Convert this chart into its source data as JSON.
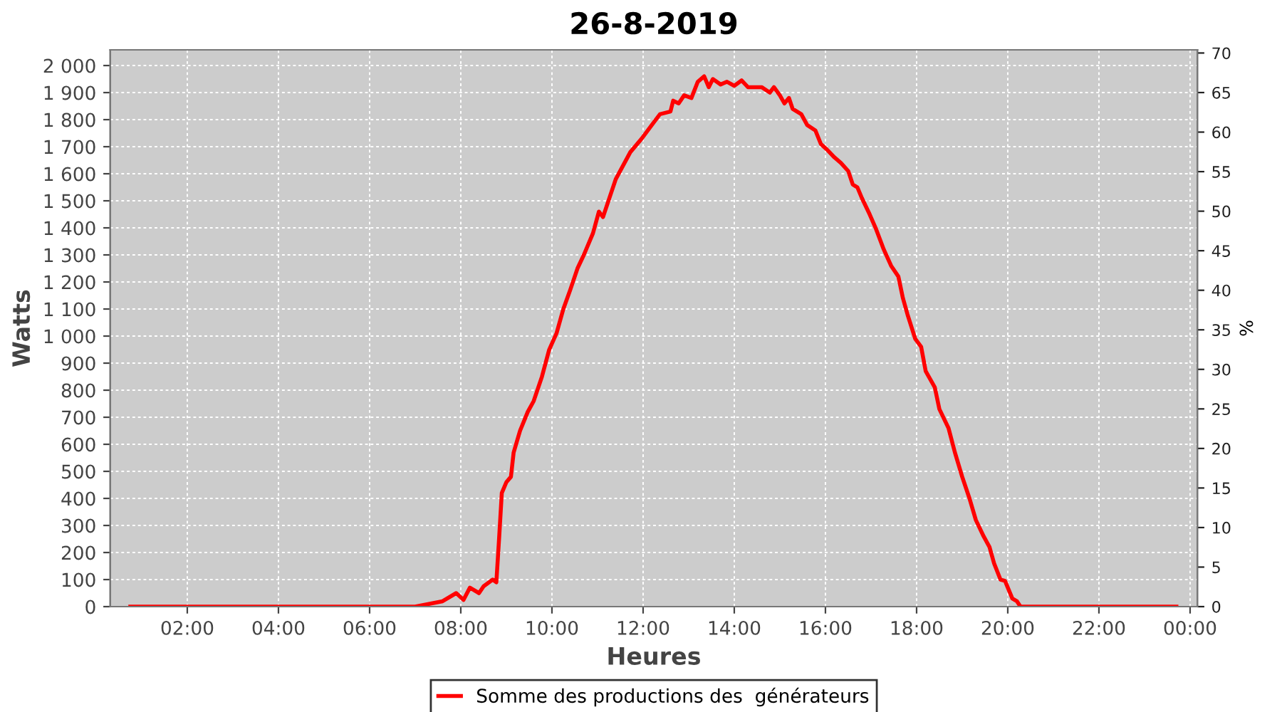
{
  "chart_data": {
    "type": "line",
    "title": "26-8-2019",
    "xlabel": "Heures",
    "ylabel": "Watts",
    "y2label": "%",
    "series": [
      {
        "name": "Somme des productions des  générateurs",
        "color": "#ff0000",
        "x": [
          0.75,
          7.0,
          7.6,
          7.9,
          8.06,
          8.2,
          8.4,
          8.5,
          8.7,
          8.78,
          8.84,
          8.9,
          9.0,
          9.1,
          9.16,
          9.3,
          9.47,
          9.6,
          9.78,
          9.94,
          10.1,
          10.25,
          10.4,
          10.56,
          10.7,
          10.9,
          11.03,
          11.12,
          11.28,
          11.4,
          11.56,
          11.72,
          11.97,
          12.19,
          12.37,
          12.6,
          12.66,
          12.78,
          12.9,
          13.06,
          13.2,
          13.34,
          13.44,
          13.53,
          13.7,
          13.84,
          14.0,
          14.16,
          14.3,
          14.6,
          14.78,
          14.87,
          15.0,
          15.1,
          15.2,
          15.28,
          15.47,
          15.6,
          15.78,
          15.9,
          16.03,
          16.2,
          16.34,
          16.5,
          16.6,
          16.7,
          16.8,
          16.97,
          17.1,
          17.28,
          17.44,
          17.6,
          17.7,
          17.8,
          17.97,
          18.1,
          18.2,
          18.4,
          18.5,
          18.7,
          18.84,
          19.0,
          19.16,
          19.3,
          19.47,
          19.6,
          19.7,
          19.84,
          19.94,
          20.1,
          20.2,
          20.28,
          23.7
        ],
        "values": [
          0,
          0,
          20,
          50,
          25,
          70,
          50,
          75,
          100,
          90,
          250,
          420,
          460,
          480,
          570,
          650,
          720,
          760,
          850,
          950,
          1010,
          1100,
          1170,
          1250,
          1300,
          1380,
          1460,
          1440,
          1520,
          1580,
          1630,
          1680,
          1730,
          1780,
          1820,
          1830,
          1870,
          1860,
          1890,
          1880,
          1940,
          1960,
          1920,
          1950,
          1930,
          1940,
          1925,
          1945,
          1920,
          1920,
          1900,
          1920,
          1890,
          1860,
          1880,
          1840,
          1820,
          1780,
          1760,
          1710,
          1690,
          1660,
          1640,
          1610,
          1560,
          1550,
          1510,
          1450,
          1400,
          1320,
          1260,
          1220,
          1140,
          1080,
          990,
          960,
          870,
          810,
          730,
          660,
          570,
          480,
          400,
          320,
          260,
          220,
          160,
          100,
          95,
          30,
          20,
          0,
          0
        ]
      }
    ],
    "xlim": [
      0.31,
      24.16
    ],
    "xticks": [
      {
        "value": 2,
        "label": "02:00"
      },
      {
        "value": 4,
        "label": "04:00"
      },
      {
        "value": 6,
        "label": "06:00"
      },
      {
        "value": 8,
        "label": "08:00"
      },
      {
        "value": 10,
        "label": "10:00"
      },
      {
        "value": 12,
        "label": "12:00"
      },
      {
        "value": 14,
        "label": "14:00"
      },
      {
        "value": 16,
        "label": "16:00"
      },
      {
        "value": 18,
        "label": "18:00"
      },
      {
        "value": 20,
        "label": "20:00"
      },
      {
        "value": 22,
        "label": "22:00"
      },
      {
        "value": 24,
        "label": "00:00"
      }
    ],
    "ylim": [
      0,
      2058
    ],
    "yticks": [
      0,
      100,
      200,
      300,
      400,
      500,
      600,
      700,
      800,
      900,
      1000,
      1100,
      1200,
      1300,
      1400,
      1500,
      1600,
      1700,
      1800,
      1900,
      2000
    ],
    "y2lim": [
      0,
      70.4
    ],
    "y2ticks": [
      0,
      5,
      10,
      15,
      20,
      25,
      30,
      35,
      40,
      45,
      50,
      55,
      60,
      65,
      70
    ],
    "grid": true,
    "legend": "bottom",
    "marker": "none",
    "line_style": "solid"
  }
}
